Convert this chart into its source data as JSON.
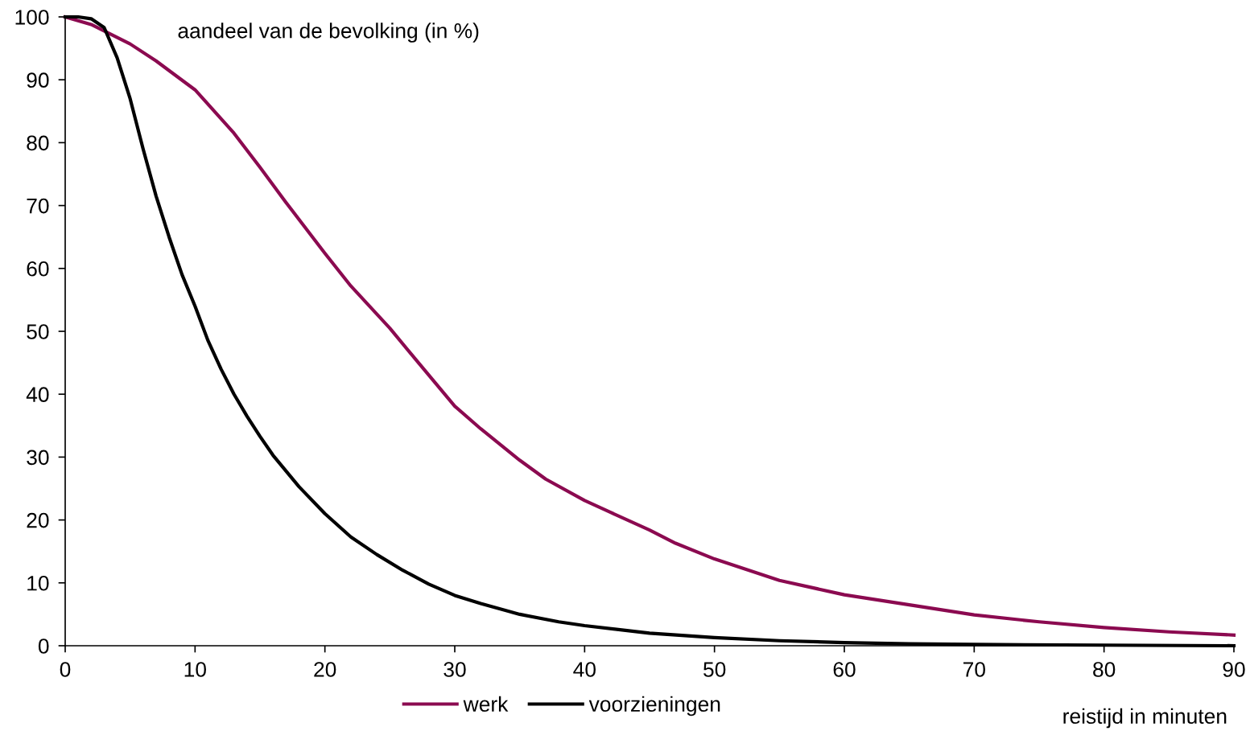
{
  "chart_data": {
    "type": "line",
    "ylabel": "aandeel van de bevolking (in %)",
    "xlabel": "reistijd in minuten",
    "xlim": [
      0,
      90
    ],
    "xticks": [
      0,
      10,
      20,
      30,
      40,
      50,
      60,
      70,
      80,
      90
    ],
    "ylim": [
      0,
      100
    ],
    "yticks": [
      0,
      10,
      20,
      30,
      40,
      50,
      60,
      70,
      80,
      90,
      100
    ],
    "grid": false,
    "legend": "bottom",
    "marker": "none",
    "line_style": "solid",
    "series": [
      {
        "name": "werk",
        "color": "#8b0a50",
        "x": [
          0,
          2,
          5,
          7,
          10,
          13,
          15,
          17,
          20,
          22,
          25,
          27,
          30,
          32,
          35,
          37,
          40,
          42,
          45,
          47,
          50,
          55,
          60,
          65,
          70,
          75,
          80,
          85,
          90
        ],
        "values": [
          100,
          98.8,
          95.7,
          93,
          88.4,
          81.5,
          76.1,
          70.5,
          62.4,
          57.2,
          50.5,
          45.5,
          38.1,
          34.5,
          29.5,
          26.5,
          23.1,
          21.2,
          18.4,
          16.3,
          13.8,
          10.4,
          8.1,
          6.5,
          4.9,
          3.8,
          2.9,
          2.2,
          1.7
        ]
      },
      {
        "name": "voorzieningen",
        "color": "#000000",
        "x": [
          0,
          1,
          2,
          3,
          4,
          5,
          6,
          7,
          8,
          9,
          10,
          11,
          12,
          13,
          14,
          15,
          16,
          18,
          20,
          22,
          24,
          26,
          28,
          30,
          32,
          35,
          38,
          40,
          45,
          50,
          55,
          60,
          65,
          70,
          80,
          90
        ],
        "values": [
          100,
          100,
          99.7,
          98.3,
          93.5,
          87,
          79,
          71.5,
          65,
          59,
          54,
          48.5,
          44,
          40,
          36.5,
          33.3,
          30.3,
          25.3,
          21,
          17.3,
          14.5,
          12,
          9.8,
          8,
          6.7,
          5,
          3.8,
          3.2,
          2,
          1.3,
          0.8,
          0.5,
          0.3,
          0.2,
          0.1,
          0
        ]
      }
    ]
  }
}
